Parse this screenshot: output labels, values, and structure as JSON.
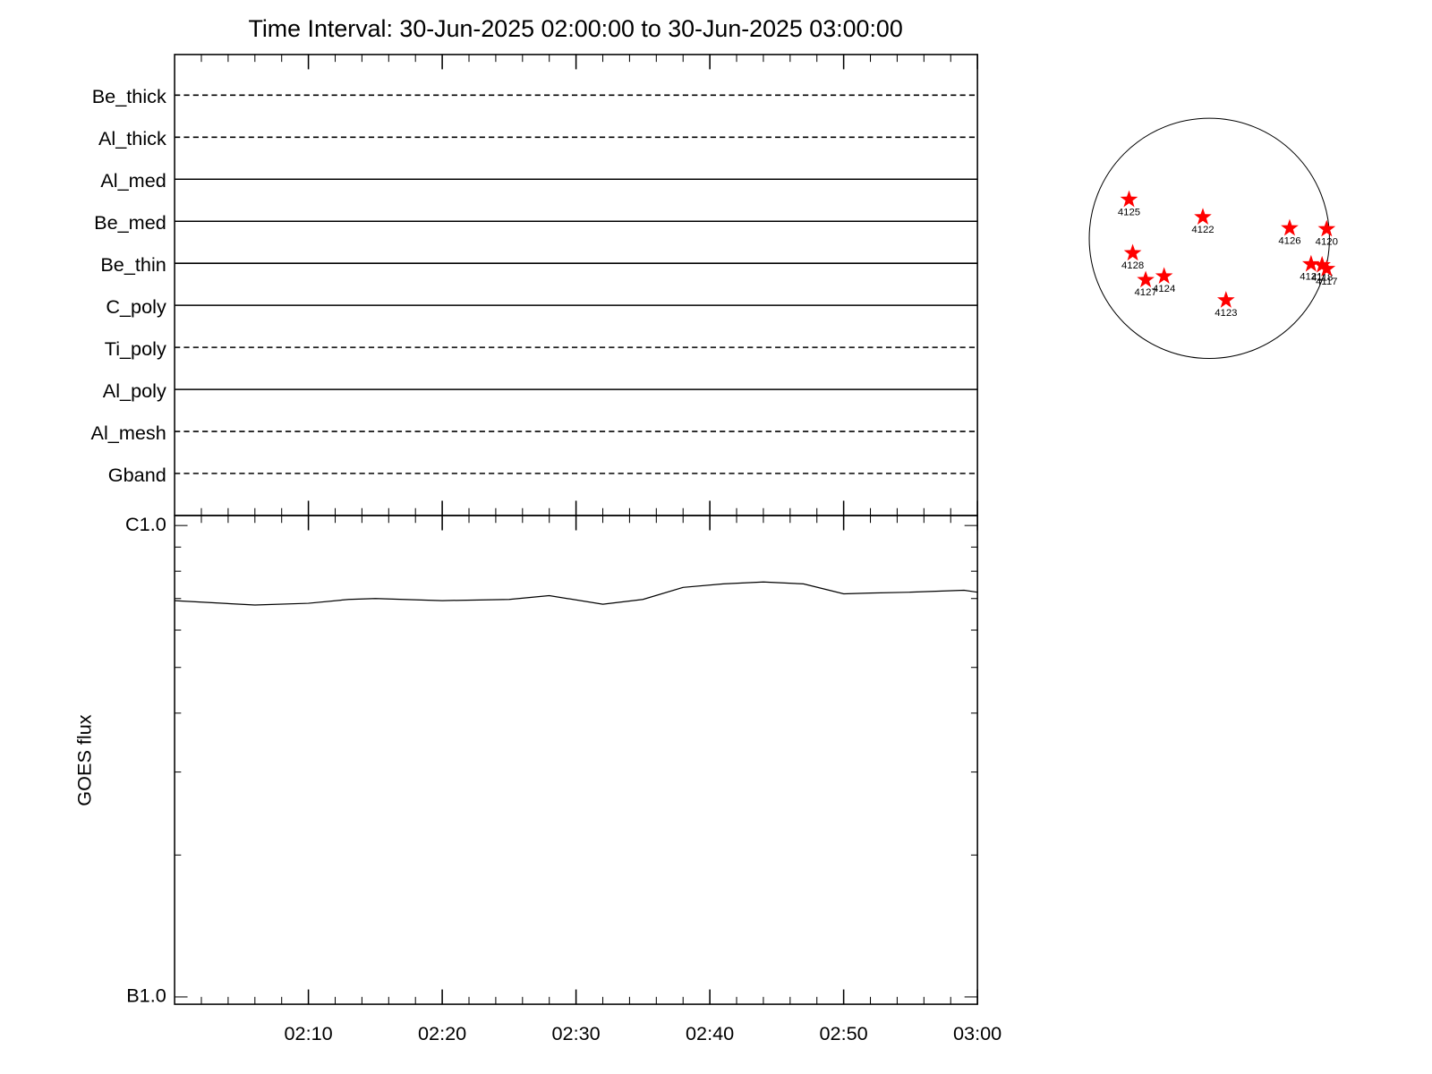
{
  "chart_data": [
    {
      "type": "filters",
      "title": "Time Interval: 30-Jun-2025 02:00:00 to 30-Jun-2025 03:00:00",
      "categories": [
        "Be_thick",
        "Al_thick",
        "Al_med",
        "Be_med",
        "Be_thin",
        "C_poly",
        "Ti_poly",
        "Al_poly",
        "Al_mesh",
        "Gband"
      ],
      "line_styles": [
        "dashed",
        "dashed",
        "solid",
        "solid",
        "solid",
        "solid",
        "dashed",
        "solid",
        "dashed",
        "dashed"
      ],
      "xlim": [
        "02:00",
        "03:00"
      ],
      "xticks": [
        "02:10",
        "02:20",
        "02:30",
        "02:40",
        "02:50",
        "03:00"
      ],
      "xminor_ticks": [
        "02:02",
        "02:04",
        "02:06",
        "02:08",
        "02:12",
        "02:14",
        "02:16",
        "02:18",
        "02:22",
        "02:24",
        "02:26",
        "02:28",
        "02:32",
        "02:34",
        "02:36",
        "02:38",
        "02:42",
        "02:44",
        "02:46",
        "02:48",
        "02:52",
        "02:54",
        "02:56",
        "02:58"
      ]
    },
    {
      "type": "line",
      "ylabel": "GOES flux",
      "x": [
        "02:00",
        "02:06",
        "02:10",
        "02:13",
        "02:15",
        "02:20",
        "02:25",
        "02:28",
        "02:32",
        "02:35",
        "02:38",
        "02:41",
        "02:44",
        "02:47",
        "02:50",
        "02:52",
        "02:55",
        "02:59",
        "03:00"
      ],
      "series": [
        {
          "color": "#000000",
          "values": [
            6.93e-07,
            6.78e-07,
            6.84e-07,
            6.97e-07,
            7e-07,
            6.93e-07,
            6.97e-07,
            7.1e-07,
            6.81e-07,
            6.97e-07,
            7.39e-07,
            7.52e-07,
            7.59e-07,
            7.52e-07,
            7.16e-07,
            7.19e-07,
            7.22e-07,
            7.29e-07,
            7.22e-07
          ]
        }
      ],
      "xlim": [
        "02:00",
        "03:00"
      ],
      "xticks": [
        "02:10",
        "02:20",
        "02:30",
        "02:40",
        "02:50",
        "03:00"
      ],
      "xminor_ticks": [
        "02:02",
        "02:04",
        "02:06",
        "02:08",
        "02:12",
        "02:14",
        "02:16",
        "02:18",
        "02:22",
        "02:24",
        "02:26",
        "02:28",
        "02:32",
        "02:34",
        "02:36",
        "02:38",
        "02:42",
        "02:44",
        "02:46",
        "02:48",
        "02:52",
        "02:54",
        "02:56",
        "02:58"
      ],
      "log_y": true,
      "ylim": [
        9.65e-08,
        1.05e-06
      ],
      "yticks": [
        {
          "value": 1e-07,
          "label": "B1.0"
        },
        {
          "value": 1e-06,
          "label": "C1.0"
        }
      ],
      "yminor_ticks": [
        2e-07,
        3e-07,
        4e-07,
        5e-07,
        6e-07,
        7e-07,
        8e-07,
        9e-07
      ]
    },
    {
      "type": "disk",
      "disk_radius": 945,
      "color": "#ff0000",
      "labels": [
        "4125",
        "4122",
        "4126",
        "4120",
        "4128",
        "4127",
        "4124",
        "4123",
        "4121",
        "4118",
        "4117"
      ],
      "x": [
        -632,
        -51,
        632,
        923,
        -603,
        -501,
        -356,
        131,
        800,
        887,
        923
      ],
      "values": [
        305,
        167,
        80,
        73,
        -116,
        -327,
        -298,
        -487,
        -203,
        -211,
        -240
      ]
    }
  ]
}
